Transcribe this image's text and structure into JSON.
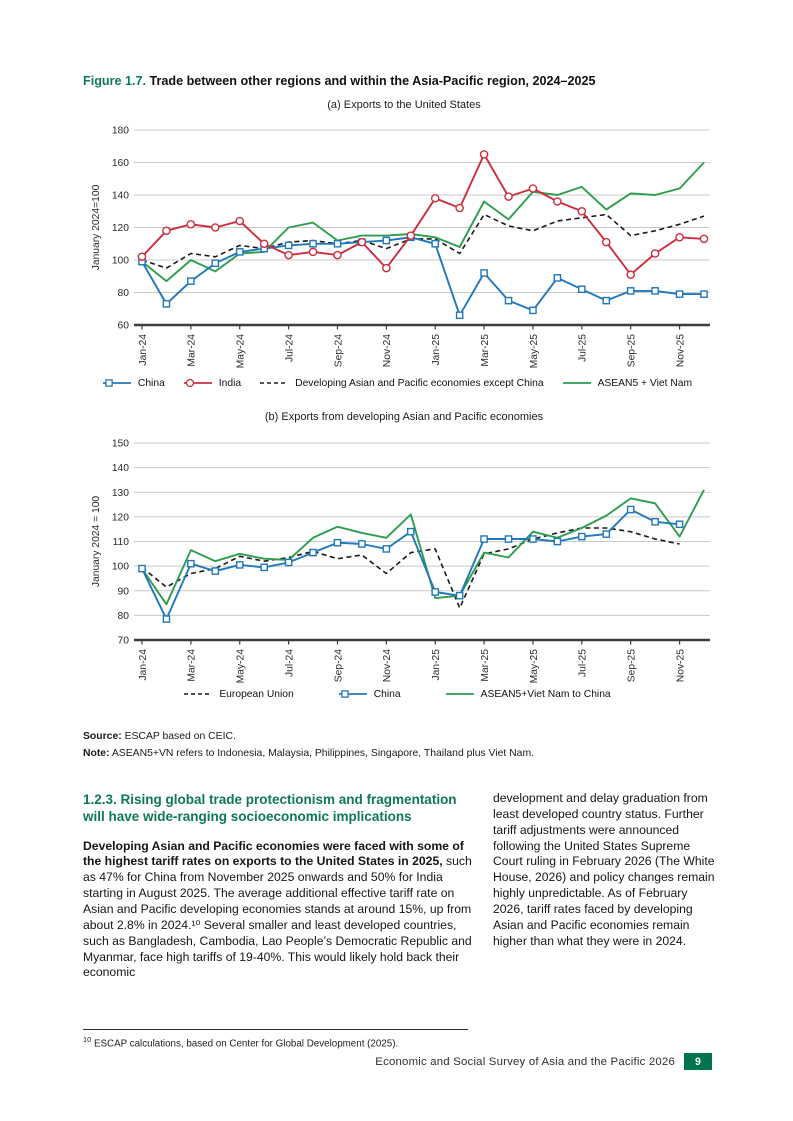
{
  "colors": {
    "brand_green": "#0f7a52",
    "badge_green": "#00744a",
    "china_blue": "#2077bc",
    "india_red": "#cc2e3f",
    "asean_green": "#2e9e4e",
    "dashed_black": "#1a1a1a"
  },
  "figure": {
    "label": "Figure 1.7.",
    "title": " Trade between other regions and within the Asia-Pacific region, 2024–2025"
  },
  "chart_data": [
    {
      "type": "line",
      "title": "(a) Exports to the United States",
      "ylabel": "January 2024=100",
      "ylim": [
        60,
        180
      ],
      "ytick_step": 20,
      "grid": true,
      "legend_position": "bottom",
      "xtick_every": 2,
      "x": [
        "Jan-24",
        "Feb-24",
        "Mar-24",
        "Apr-24",
        "May-24",
        "Jun-24",
        "Jul-24",
        "Aug-24",
        "Sep-24",
        "Oct-24",
        "Nov-24",
        "Dec-24",
        "Jan-25",
        "Feb-25",
        "Mar-25",
        "Apr-25",
        "May-25",
        "Jun-25",
        "Jul-25",
        "Aug-25",
        "Sep-25",
        "Oct-25",
        "Nov-25",
        "Dec-25"
      ],
      "series": [
        {
          "name": "China",
          "color": "#2077bc",
          "marker": "square",
          "values": [
            99,
            73,
            87,
            98,
            105,
            107,
            109,
            110,
            110,
            111,
            112,
            114,
            110,
            66,
            92,
            75,
            69,
            89,
            82,
            75,
            81,
            81,
            79,
            79
          ]
        },
        {
          "name": "India",
          "color": "#cc2e3f",
          "marker": "circle",
          "values": [
            102,
            118,
            122,
            120,
            124,
            110,
            103,
            105,
            103,
            111,
            95,
            115,
            138,
            132,
            165,
            139,
            144,
            136,
            130,
            111,
            91,
            104,
            114,
            113
          ]
        },
        {
          "name": "Developing Asian and Pacific economies except China",
          "color": "#1a1a1a",
          "dash": true,
          "values": [
            100,
            95,
            104,
            102,
            109,
            107,
            111,
            112,
            110,
            112,
            107,
            113,
            113,
            104,
            128,
            121,
            118,
            124,
            126,
            128,
            115,
            118,
            122,
            127
          ]
        },
        {
          "name": "ASEAN5 + Viet Nam",
          "color": "#2e9e4e",
          "values": [
            99,
            87,
            100,
            93,
            104,
            105,
            120,
            123,
            112,
            115,
            115,
            116,
            114,
            108,
            136,
            125,
            142,
            140,
            145,
            131,
            141,
            140,
            144,
            160
          ]
        }
      ]
    },
    {
      "type": "line",
      "title": "(b) Exports from developing Asian and Pacific economies",
      "ylabel": "January 2024 = 100",
      "ylim": [
        70,
        150
      ],
      "ytick_step": 10,
      "grid": true,
      "legend_position": "bottom",
      "xtick_every": 2,
      "x": [
        "Jan-24",
        "Feb-24",
        "Mar-24",
        "Apr-24",
        "May-24",
        "Jun-24",
        "Jul-24",
        "Aug-24",
        "Sep-24",
        "Oct-24",
        "Nov-24",
        "Dec-24",
        "Jan-25",
        "Feb-25",
        "Mar-25",
        "Apr-25",
        "May-25",
        "Jun-25",
        "Jul-25",
        "Aug-25",
        "Sep-25",
        "Oct-25",
        "Nov-25",
        "Dec-25"
      ],
      "series": [
        {
          "name": "European Union",
          "color": "#1a1a1a",
          "dash": true,
          "values": [
            99.5,
            91.5,
            97,
            99,
            104,
            102,
            103.5,
            106,
            103,
            104.5,
            97,
            105.5,
            107,
            83,
            105,
            107,
            111,
            113.5,
            115.5,
            115.5,
            114,
            111,
            109,
            null
          ]
        },
        {
          "name": "China",
          "color": "#2077bc",
          "marker": "square",
          "values": [
            99,
            78.5,
            101,
            98,
            100.5,
            99.5,
            101.5,
            105.5,
            109.5,
            109,
            107,
            114,
            89.5,
            88,
            111,
            111,
            111,
            110,
            112,
            113,
            123,
            118,
            117,
            null
          ]
        },
        {
          "name": "ASEAN5+Viet Nam to China",
          "color": "#2e9e4e",
          "values": [
            99,
            84.5,
            106.5,
            102,
            105,
            103,
            102.5,
            111.5,
            116,
            113.5,
            111.5,
            121,
            87,
            88,
            105.5,
            103.5,
            114,
            111.5,
            115.5,
            120.5,
            127.5,
            125.5,
            112,
            131
          ]
        }
      ]
    }
  ],
  "source": {
    "label": "Source:",
    "text": " ESCAP based on CEIC."
  },
  "note": {
    "label": "Note:",
    "text": " ASEAN5+VN refers to Indonesia, Malaysia, Philippines, Singapore, Thailand plus Viet Nam."
  },
  "section": {
    "heading": "1.2.3. Rising global trade protectionism and fragmentation will have wide-ranging socioeconomic implications",
    "left_bold": "Developing Asian and Pacific economies were faced with some of the highest tariff rates on exports to the United States in 2025,",
    "left_rest": " such as 47% for China from November 2025 onwards and 50% for India starting in August 2025. The average additional effective tariff rate on Asian and Pacific developing economies stands at around 15%, up from about 2.8% in 2024.¹⁰ Several smaller and least developed countries, such as Bangladesh, Cambodia, Lao People’s Democratic Republic and Myanmar, face high tariffs of 19-40%. This would likely hold back their economic",
    "right_text": "development and delay graduation from least developed country status. Further tariff adjustments were announced following the United States Supreme Court ruling in February 2026 (The White House, 2026) and policy changes remain highly unpredictable. As of February 2026, tariff rates faced by developing Asian and Pacific economies remain higher than what they were in 2024."
  },
  "footnote": {
    "marker": "10",
    "text": " ESCAP calculations, based on Center for Global Development (2025)."
  },
  "footer": {
    "text": "Economic and Social Survey of Asia and the Pacific 2026",
    "page_number": "9"
  }
}
